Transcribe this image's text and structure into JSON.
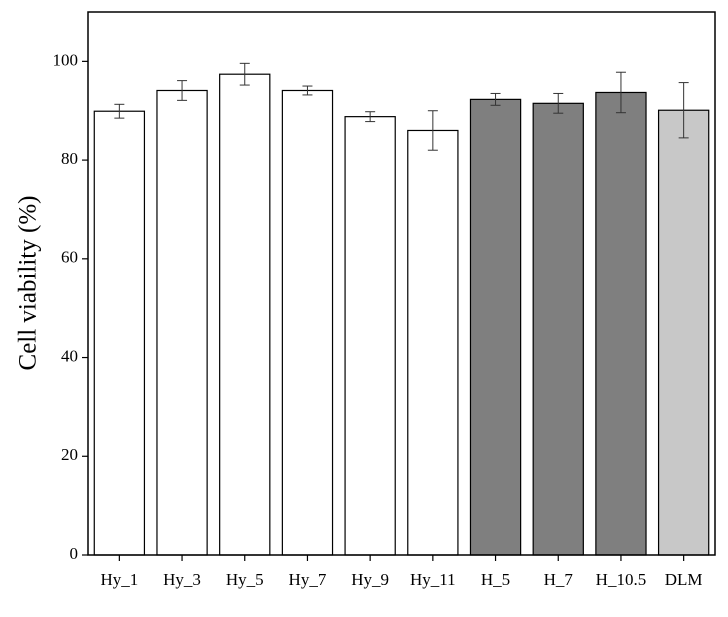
{
  "chart_data": {
    "type": "bar",
    "y_label": "Cell viability (%)",
    "categories": [
      "Hy_1",
      "Hy_3",
      "Hy_5",
      "Hy_7",
      "Hy_9",
      "Hy_11",
      "H_5",
      "H_7",
      "H_10.5",
      "DLM"
    ],
    "values": [
      89.9,
      94.1,
      97.4,
      94.1,
      88.8,
      86.0,
      92.3,
      91.5,
      93.7,
      90.1
    ],
    "errors": [
      1.4,
      2.0,
      2.2,
      0.9,
      1.0,
      4.0,
      1.2,
      2.0,
      4.1,
      5.6
    ],
    "colors": [
      "#ffffff",
      "#ffffff",
      "#ffffff",
      "#ffffff",
      "#ffffff",
      "#ffffff",
      "#7f7f7f",
      "#7f7f7f",
      "#7f7f7f",
      "#c8c8c8"
    ],
    "ylim": [
      0,
      110
    ],
    "yticks": [
      0,
      20,
      40,
      60,
      80,
      100
    ]
  }
}
